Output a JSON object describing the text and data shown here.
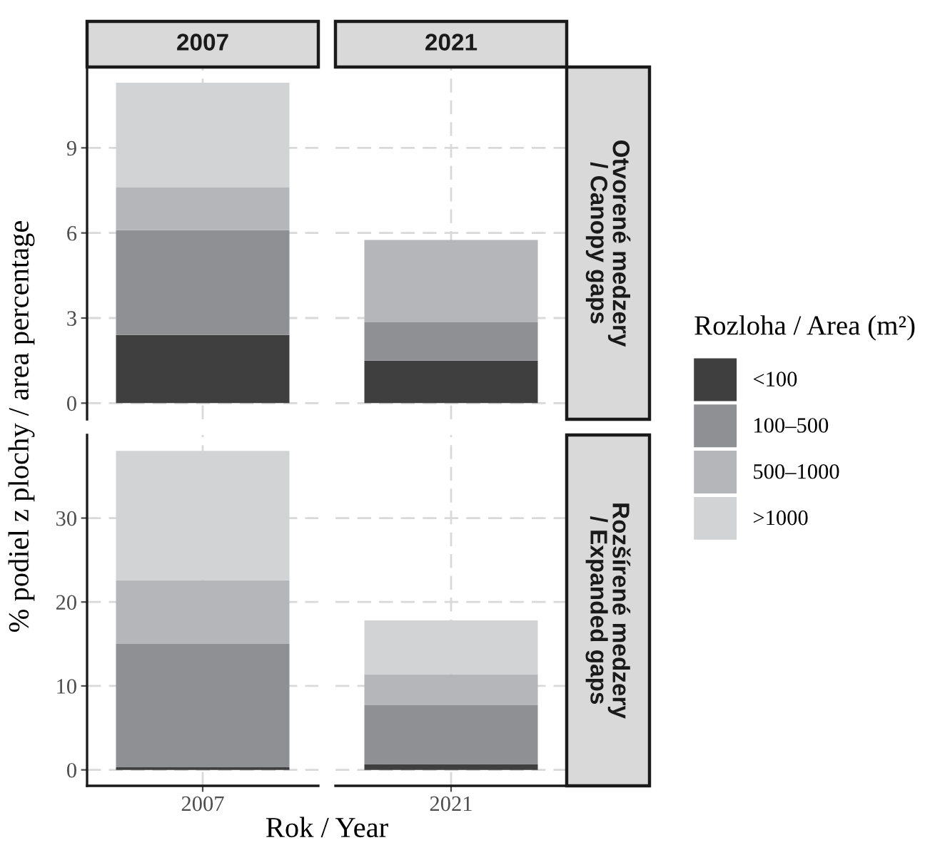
{
  "chart_data": [
    {
      "type": "bar",
      "stacked": true,
      "title": "2007",
      "ylabel": "% podiel z plochy / area percentage",
      "categories": [
        "2007"
      ],
      "series": [
        {
          "name": "<100",
          "color": "#3f3f3f",
          "values": [
            2.4
          ]
        },
        {
          "name": "100–500",
          "color": "#8f9093",
          "values": [
            3.7
          ]
        },
        {
          "name": "500–1000",
          "color": "#b5b6b9",
          "values": [
            1.5
          ]
        },
        {
          "name": ">1000",
          "color": "#d2d3d5",
          "values": [
            3.7
          ]
        }
      ],
      "ylim": [
        -0.57,
        11.85
      ],
      "yticks": [
        0,
        3,
        6,
        9
      ],
      "grid": true,
      "tick_labels": "y",
      "legend": "right",
      "legend_title": "Rozloha / Area (m²)"
    },
    {
      "type": "bar",
      "stacked": true,
      "title": "2021",
      "categories": [
        "2021"
      ],
      "series": [
        {
          "name": "<100",
          "color": "#3f3f3f",
          "values": [
            1.5
          ]
        },
        {
          "name": "100–500",
          "color": "#8f9093",
          "values": [
            1.35
          ]
        },
        {
          "name": "500–1000",
          "color": "#b5b6b9",
          "values": [
            2.9
          ]
        },
        {
          "name": ">1000",
          "color": "#d2d3d5",
          "values": [
            null
          ]
        }
      ],
      "ylim": [
        -0.57,
        11.85
      ],
      "yticks": [
        0,
        3,
        6,
        9
      ],
      "grid": true,
      "tick_labels": false,
      "annotations": [
        "Otvorené medzery\n/ Canopy gaps"
      ]
    },
    {
      "type": "bar",
      "stacked": true,
      "xlabel": "Rok / Year",
      "categories": [
        "2007"
      ],
      "series": [
        {
          "name": "<100",
          "color": "#3f3f3f",
          "values": [
            0.3
          ]
        },
        {
          "name": "100–500",
          "color": "#8f9093",
          "values": [
            14.7
          ]
        },
        {
          "name": "500–1000",
          "color": "#b5b6b9",
          "values": [
            7.6
          ]
        },
        {
          "name": ">1000",
          "color": "#d2d3d5",
          "values": [
            15.4
          ]
        }
      ],
      "ylim": [
        -1.9,
        39.9
      ],
      "yticks": [
        0,
        10,
        20,
        30
      ],
      "grid": true
    },
    {
      "type": "bar",
      "stacked": true,
      "categories": [
        "2021"
      ],
      "series": [
        {
          "name": "<100",
          "color": "#3f3f3f",
          "values": [
            0.7
          ]
        },
        {
          "name": "100–500",
          "color": "#8f9093",
          "values": [
            7.0
          ]
        },
        {
          "name": "500–1000",
          "color": "#b5b6b9",
          "values": [
            3.7
          ]
        },
        {
          "name": ">1000",
          "color": "#d2d3d5",
          "values": [
            6.4
          ]
        }
      ],
      "ylim": [
        -1.9,
        39.9
      ],
      "yticks": [
        0,
        10,
        20,
        30
      ],
      "grid": true,
      "tick_labels": "x",
      "annotations": [
        "Rozšírené medzery\n/ Expanded gaps"
      ]
    }
  ]
}
